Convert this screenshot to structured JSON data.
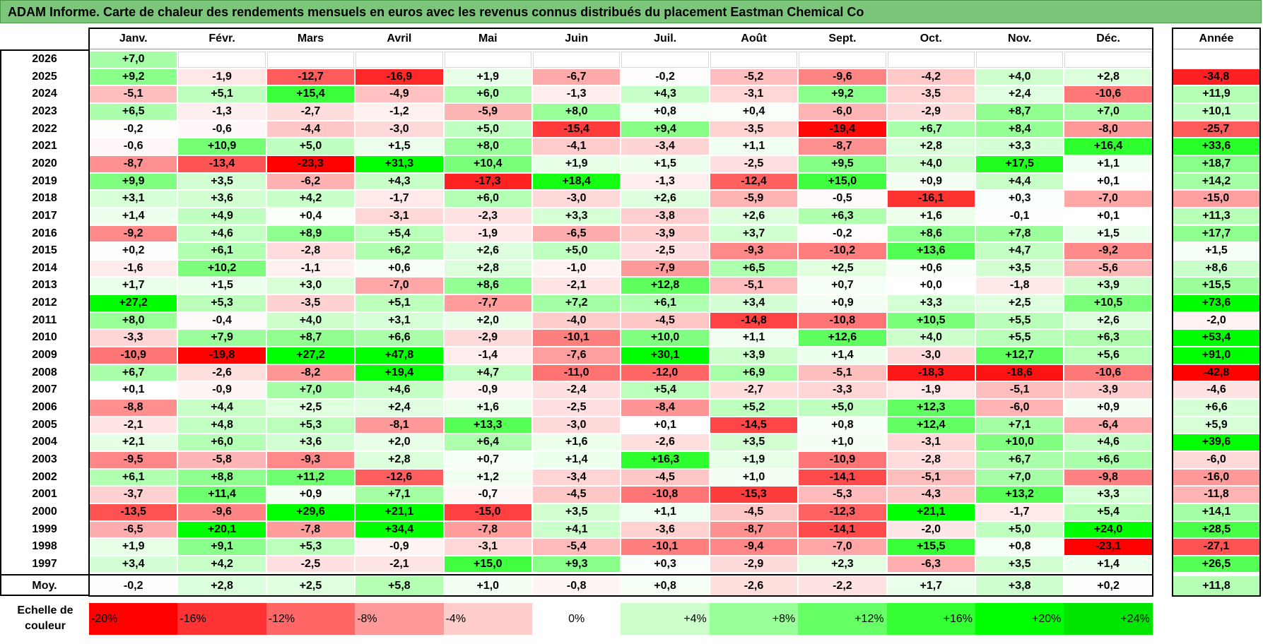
{
  "title": "ADAM Informe. Carte de chaleur des rendements mensuels en euros avec les revenus connus distribués du placement Eastman Chemical Co",
  "chart_data": {
    "type": "heatmap",
    "title": "ADAM Informe. Carte de chaleur des rendements mensuels en euros avec les revenus connus distribués du placement Eastman Chemical Co",
    "columns": [
      "Janv.",
      "Févr.",
      "Mars",
      "Avril",
      "Mai",
      "Juin",
      "Juil.",
      "Août",
      "Sept.",
      "Oct.",
      "Nov.",
      "Déc."
    ],
    "year_header": "Année",
    "rows": [
      {
        "year": "2026",
        "values": [
          "+7,0",
          "",
          "",
          "",
          "",
          "",
          "",
          "",
          "",
          "",
          "",
          ""
        ],
        "annual": ""
      },
      {
        "year": "2025",
        "values": [
          "+9,2",
          "-1,9",
          "-12,7",
          "-16,9",
          "+1,9",
          "-6,7",
          "-0,2",
          "-5,2",
          "-9,6",
          "-4,2",
          "+4,0",
          "+2,8"
        ],
        "annual": "-34,8"
      },
      {
        "year": "2024",
        "values": [
          "-5,1",
          "+5,1",
          "+15,4",
          "-4,9",
          "+6,0",
          "-1,3",
          "+4,3",
          "-3,1",
          "+9,2",
          "-3,5",
          "+2,4",
          "-10,6"
        ],
        "annual": "+11,9"
      },
      {
        "year": "2023",
        "values": [
          "+6,5",
          "-1,3",
          "-2,7",
          "-1,2",
          "-5,9",
          "+8,0",
          "+0,8",
          "+0,4",
          "-6,0",
          "-2,9",
          "+8,7",
          "+7,0"
        ],
        "annual": "+10,1"
      },
      {
        "year": "2022",
        "values": [
          "-0,2",
          "-0,6",
          "-4,4",
          "-3,0",
          "+5,0",
          "-15,4",
          "+9,4",
          "-3,5",
          "-19,4",
          "+6,7",
          "+8,4",
          "-8,0"
        ],
        "annual": "-25,7"
      },
      {
        "year": "2021",
        "values": [
          "-0,6",
          "+10,9",
          "+5,0",
          "+1,5",
          "+8,0",
          "-4,1",
          "-3,4",
          "+1,1",
          "-8,7",
          "+2,8",
          "+3,3",
          "+16,4"
        ],
        "annual": "+33,6"
      },
      {
        "year": "2020",
        "values": [
          "-8,7",
          "-13,4",
          "-23,3",
          "+31,3",
          "+10,4",
          "+1,9",
          "+1,5",
          "-2,5",
          "+9,5",
          "+4,0",
          "+17,5",
          "+1,1"
        ],
        "annual": "+18,7"
      },
      {
        "year": "2019",
        "values": [
          "+9,9",
          "+3,5",
          "-6,2",
          "+4,3",
          "-17,3",
          "+18,4",
          "-1,3",
          "-12,4",
          "+15,0",
          "+0,9",
          "+4,4",
          "+0,1"
        ],
        "annual": "+14,2"
      },
      {
        "year": "2018",
        "values": [
          "+3,1",
          "+3,6",
          "+4,2",
          "-1,7",
          "+6,0",
          "-3,0",
          "+2,6",
          "-5,9",
          "-0,5",
          "-16,1",
          "+0,3",
          "-7,0"
        ],
        "annual": "-15,0"
      },
      {
        "year": "2017",
        "values": [
          "+1,4",
          "+4,9",
          "+0,4",
          "-3,1",
          "-2,3",
          "+3,3",
          "-3,8",
          "+2,6",
          "+6,3",
          "+1,6",
          "-0,1",
          "+0,1"
        ],
        "annual": "+11,3"
      },
      {
        "year": "2016",
        "values": [
          "-9,2",
          "+4,6",
          "+8,9",
          "+5,4",
          "-1,9",
          "-6,5",
          "-3,9",
          "+3,7",
          "-0,2",
          "+8,6",
          "+7,8",
          "+1,5"
        ],
        "annual": "+17,7"
      },
      {
        "year": "2015",
        "values": [
          "+0,2",
          "+6,1",
          "-2,8",
          "+6,2",
          "+2,6",
          "+5,0",
          "-2,5",
          "-9,3",
          "-10,2",
          "+13,6",
          "+4,7",
          "-9,2"
        ],
        "annual": "+1,5"
      },
      {
        "year": "2014",
        "values": [
          "-1,6",
          "+10,2",
          "-1,1",
          "+0,6",
          "+2,8",
          "-1,0",
          "-7,9",
          "+6,5",
          "+2,5",
          "+0,6",
          "+3,5",
          "-5,6"
        ],
        "annual": "+8,6"
      },
      {
        "year": "2013",
        "values": [
          "+1,7",
          "+1,5",
          "+3,0",
          "-7,0",
          "+8,6",
          "-2,1",
          "+12,8",
          "-5,1",
          "+0,7",
          "+0,0",
          "-1,8",
          "+3,9"
        ],
        "annual": "+15,5"
      },
      {
        "year": "2012",
        "values": [
          "+27,2",
          "+5,3",
          "-3,5",
          "+5,1",
          "-7,7",
          "+7,2",
          "+6,1",
          "+3,4",
          "+0,9",
          "+3,3",
          "+2,5",
          "+10,5"
        ],
        "annual": "+73,6"
      },
      {
        "year": "2011",
        "values": [
          "+8,0",
          "-0,4",
          "+4,0",
          "+3,1",
          "+2,0",
          "-4,0",
          "-4,5",
          "-14,8",
          "-10,8",
          "+10,5",
          "+5,5",
          "+2,6"
        ],
        "annual": "-2,0"
      },
      {
        "year": "2010",
        "values": [
          "-3,3",
          "+7,9",
          "+8,7",
          "+6,6",
          "-2,9",
          "-10,1",
          "+10,0",
          "+1,1",
          "+12,6",
          "+4,0",
          "+5,5",
          "+6,3"
        ],
        "annual": "+53,4"
      },
      {
        "year": "2009",
        "values": [
          "-10,9",
          "-19,8",
          "+27,2",
          "+47,8",
          "-1,4",
          "-7,6",
          "+30,1",
          "+3,9",
          "+1,4",
          "-3,0",
          "+12,7",
          "+5,6"
        ],
        "annual": "+91,0"
      },
      {
        "year": "2008",
        "values": [
          "+6,7",
          "-2,6",
          "-8,2",
          "+19,4",
          "+4,7",
          "-11,0",
          "-12,0",
          "+6,9",
          "-5,1",
          "-18,3",
          "-18,6",
          "-10,6"
        ],
        "annual": "-42,8"
      },
      {
        "year": "2007",
        "values": [
          "+0,1",
          "-0,9",
          "+7,0",
          "+4,6",
          "-0,9",
          "-2,4",
          "+5,4",
          "-2,7",
          "-3,3",
          "-1,9",
          "-5,1",
          "-3,9"
        ],
        "annual": "-4,6"
      },
      {
        "year": "2006",
        "values": [
          "-8,8",
          "+4,4",
          "+2,5",
          "+2,4",
          "+1,6",
          "-2,5",
          "-8,4",
          "+5,2",
          "+5,0",
          "+12,3",
          "-6,0",
          "+0,9"
        ],
        "annual": "+6,6"
      },
      {
        "year": "2005",
        "values": [
          "-2,1",
          "+4,8",
          "+5,3",
          "-8,1",
          "+13,3",
          "-3,0",
          "+0,1",
          "-14,5",
          "+0,8",
          "+12,4",
          "+7,1",
          "-6,4"
        ],
        "annual": "+5,9"
      },
      {
        "year": "2004",
        "values": [
          "+2,1",
          "+6,0",
          "+3,6",
          "+2,0",
          "+6,4",
          "+1,6",
          "-2,6",
          "+3,5",
          "+1,0",
          "-3,1",
          "+10,0",
          "+4,6"
        ],
        "annual": "+39,6"
      },
      {
        "year": "2003",
        "values": [
          "-9,5",
          "-5,8",
          "-9,3",
          "+2,8",
          "+0,7",
          "+1,4",
          "+16,3",
          "+1,9",
          "-10,9",
          "-2,8",
          "+6,7",
          "+6,6"
        ],
        "annual": "-6,0"
      },
      {
        "year": "2002",
        "values": [
          "+6,1",
          "+8,8",
          "+11,2",
          "-12,6",
          "+1,2",
          "-3,4",
          "-4,5",
          "+1,0",
          "-14,1",
          "-5,1",
          "+7,0",
          "-9,8"
        ],
        "annual": "-16,0"
      },
      {
        "year": "2001",
        "values": [
          "-3,7",
          "+11,4",
          "+0,9",
          "+7,1",
          "-0,7",
          "-4,5",
          "-10,8",
          "-15,3",
          "-5,3",
          "-4,3",
          "+13,2",
          "+3,3"
        ],
        "annual": "-11,8"
      },
      {
        "year": "2000",
        "values": [
          "-13,5",
          "-9,6",
          "+29,6",
          "+21,1",
          "-15,0",
          "+3,5",
          "+1,1",
          "-4,5",
          "-12,3",
          "+21,1",
          "-1,7",
          "+5,4"
        ],
        "annual": "+14,1"
      },
      {
        "year": "1999",
        "values": [
          "-6,5",
          "+20,1",
          "-7,8",
          "+34,4",
          "-7,8",
          "+4,1",
          "-3,6",
          "-8,7",
          "-14,1",
          "-2,0",
          "+5,0",
          "+24,0"
        ],
        "annual": "+28,5"
      },
      {
        "year": "1998",
        "values": [
          "+1,9",
          "+9,1",
          "+5,3",
          "-0,9",
          "-3,1",
          "-5,4",
          "-10,1",
          "-9,4",
          "-7,0",
          "+15,5",
          "+0,8",
          "-23,1"
        ],
        "annual": "-27,1"
      },
      {
        "year": "1997",
        "values": [
          "+3,4",
          "+4,2",
          "-2,5",
          "-2,1",
          "+15,0",
          "+9,3",
          "+0,3",
          "-2,9",
          "+2,3",
          "-6,3",
          "+3,5",
          "+1,4"
        ],
        "annual": "+26,5"
      }
    ],
    "average": {
      "label": "Moy.",
      "values": [
        "-0,2",
        "+2,8",
        "+2,5",
        "+5,8",
        "+1,0",
        "-0,8",
        "+0,8",
        "-2,6",
        "-2,2",
        "+1,7",
        "+3,8",
        "+0,2"
      ],
      "annual": "+11,8"
    },
    "legend": {
      "label": "Echelle de couleur",
      "stops": [
        {
          "label": "-20%",
          "value": -20,
          "color": "#ff0000"
        },
        {
          "label": "-16%",
          "value": -16,
          "color": "#ff3333"
        },
        {
          "label": "-12%",
          "value": -12,
          "color": "#ff6666"
        },
        {
          "label": "-8%",
          "value": -8,
          "color": "#ff9999"
        },
        {
          "label": "-4%",
          "value": -4,
          "color": "#ffcccc"
        },
        {
          "label": "0%",
          "value": 0,
          "color": "#ffffff"
        },
        {
          "label": "+4%",
          "value": 4,
          "color": "#ccffcc"
        },
        {
          "label": "+8%",
          "value": 8,
          "color": "#99ff99"
        },
        {
          "label": "+12%",
          "value": 12,
          "color": "#66ff66"
        },
        {
          "label": "+16%",
          "value": 16,
          "color": "#33ff33"
        },
        {
          "label": "+20%",
          "value": 20,
          "color": "#00ff00"
        },
        {
          "label": "+24%",
          "value": 24,
          "color": "#00e600"
        }
      ]
    },
    "colors": {
      "title_bg": "#7bc67b",
      "negative_max": "#ff0000",
      "positive_max": "#00ff00",
      "neutral": "#ffffff"
    }
  }
}
